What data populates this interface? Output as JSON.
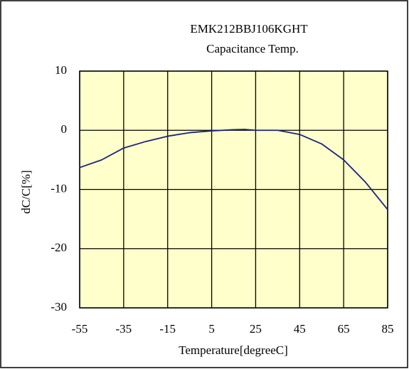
{
  "chart_data": {
    "type": "line",
    "title": "EMK212BBJ106KGHT",
    "subtitle": "Capacitance Temp.",
    "x_label": "Temperature[degreeC]",
    "y_label": "dC/C[%]",
    "x": [
      -55,
      -45,
      -35,
      -25,
      -15,
      -5,
      5,
      15,
      20,
      25,
      35,
      45,
      55,
      65,
      75,
      85
    ],
    "series": [
      {
        "name": "EMK212BBJ106KGHT",
        "color": "#1a237e",
        "values": [
          -6.3,
          -5.0,
          -3.0,
          -1.9,
          -1.0,
          -0.4,
          -0.1,
          0.1,
          0.15,
          0.0,
          0.0,
          -0.7,
          -2.3,
          -5.0,
          -8.8,
          -13.4
        ]
      }
    ],
    "xlim": [
      -55,
      85
    ],
    "xticks": [
      -55,
      -35,
      -15,
      5,
      25,
      45,
      65,
      85
    ],
    "ylim": [
      -30,
      10
    ],
    "yticks": [
      10,
      0,
      -10,
      -20,
      -30
    ],
    "grid": true,
    "background": "#ffffcc"
  }
}
